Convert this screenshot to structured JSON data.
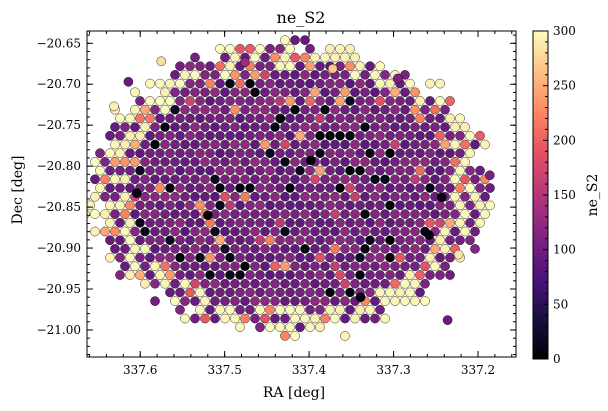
{
  "chart_data": {
    "type": "scatter",
    "title": "ne_S2",
    "xlabel": "RA [deg]",
    "ylabel": "Dec [deg]",
    "colorbar_label": "ne_S2",
    "colormap": "magma",
    "xlim": [
      337.663,
      337.155
    ],
    "ylim": [
      -21.033,
      -20.635
    ],
    "x_inverted": true,
    "x_ticks": [
      337.6,
      337.5,
      337.4,
      337.3,
      337.2
    ],
    "x_tick_labels": [
      "337.6",
      "337.5",
      "337.4",
      "337.3",
      "337.2"
    ],
    "y_ticks": [
      -20.65,
      -20.7,
      -20.75,
      -20.8,
      -20.85,
      -20.9,
      -20.95,
      -21.0
    ],
    "y_tick_labels": [
      "−20.65",
      "−20.70",
      "−20.75",
      "−20.80",
      "−20.85",
      "−20.90",
      "−20.95",
      "−21.00"
    ],
    "clim": [
      0,
      300
    ],
    "colorbar_ticks": [
      0,
      50,
      100,
      150,
      200,
      250,
      300
    ],
    "colorbar_tick_labels": [
      "0",
      "50",
      "100",
      "150",
      "200",
      "250",
      "300"
    ],
    "grid": false,
    "marker_color_edge": "#000000",
    "points_description": "dense hexagonal grid of spaxels, mostly purple (~100), with pale outliers (>280) near edges and dark points (<30) scattered; region roughly RA 337.21–337.62, Dec −21.00 to −20.65",
    "sample_points": [
      {
        "x": 337.614,
        "y": -20.697,
        "v": 95
      },
      {
        "x": 337.631,
        "y": -20.727,
        "v": 290
      },
      {
        "x": 337.604,
        "y": -20.833,
        "v": 5
      },
      {
        "x": 337.575,
        "y": -20.672,
        "v": 280
      },
      {
        "x": 337.476,
        "y": -20.673,
        "v": 130
      },
      {
        "x": 337.372,
        "y": -20.681,
        "v": 265
      },
      {
        "x": 337.295,
        "y": -20.693,
        "v": 110
      },
      {
        "x": 337.243,
        "y": -20.838,
        "v": 10
      },
      {
        "x": 337.236,
        "y": -20.988,
        "v": 95
      },
      {
        "x": 337.223,
        "y": -20.908,
        "v": 285
      },
      {
        "x": 337.186,
        "y": -20.811,
        "v": 105
      },
      {
        "x": 337.258,
        "y": -20.884,
        "v": 5
      },
      {
        "x": 337.339,
        "y": -20.96,
        "v": 5
      },
      {
        "x": 337.52,
        "y": -20.86,
        "v": 0
      },
      {
        "x": 337.434,
        "y": -20.742,
        "v": 5
      },
      {
        "x": 337.398,
        "y": -20.793,
        "v": 0
      }
    ]
  }
}
